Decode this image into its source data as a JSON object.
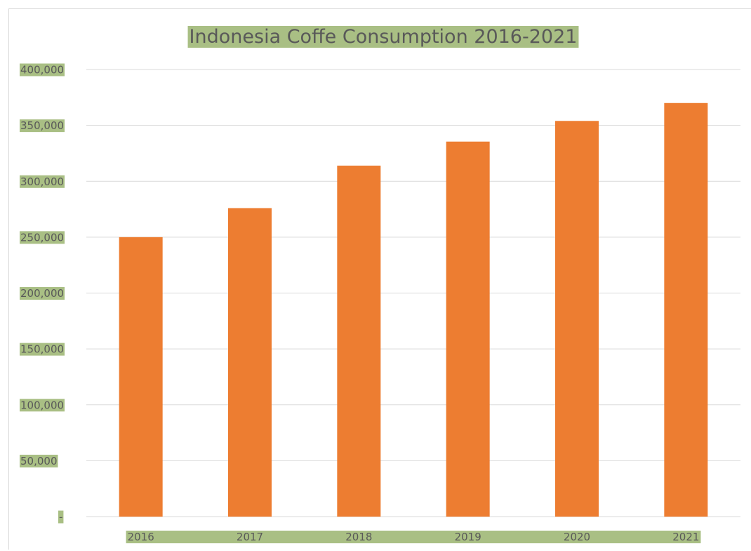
{
  "chart_data": {
    "type": "bar",
    "title": "Indonesia Coffe Consumption 2016-2021",
    "categories": [
      "2016",
      "2017",
      "2018",
      "2019",
      "2020",
      "2021"
    ],
    "values": [
      250000,
      276000,
      314000,
      335500,
      354000,
      370000
    ],
    "ylim": [
      0,
      400000
    ],
    "yticks": [
      0,
      50000,
      100000,
      150000,
      200000,
      250000,
      300000,
      350000,
      400000
    ],
    "ytick_labels": [
      "-",
      "50,000",
      "100,000",
      "150,000",
      "200,000",
      "250,000",
      "300,000",
      "350,000",
      "400,000"
    ],
    "grid": true,
    "legend": "none",
    "colors": {
      "bar": "#ed7d31",
      "label_highlight": "#a9bf84",
      "text": "#595959",
      "grid": "#d9d9d9"
    }
  }
}
